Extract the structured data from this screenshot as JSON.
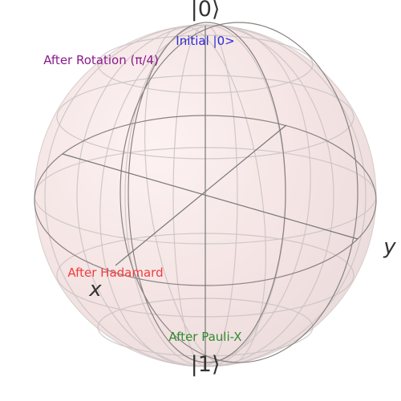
{
  "bloch": {
    "pole_top": "|0⟩",
    "pole_bottom": "|1⟩",
    "axis_x": "x",
    "axis_y": "y"
  },
  "annotations": [
    {
      "text": "Initial |0>",
      "color": "#2a2ad8"
    },
    {
      "text": "After Rotation (π/4)",
      "color": "#8b1a8b"
    },
    {
      "text": "After Hadamard",
      "color": "#f03c3c"
    },
    {
      "text": "After Pauli-X",
      "color": "#2e8b2e"
    }
  ],
  "colors": {
    "sphere_fill": "#f6e6e6",
    "wire": "#9a9a9a",
    "axis_line": "#777777",
    "pole_text": "#333333"
  }
}
